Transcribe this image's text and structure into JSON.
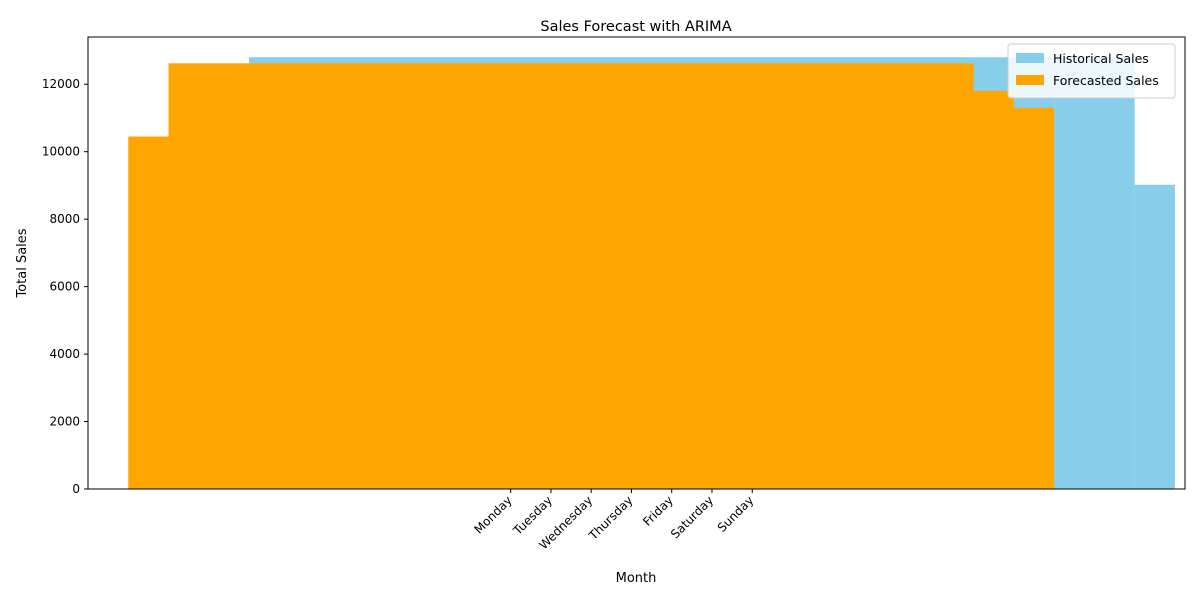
{
  "chart_data": {
    "type": "bar",
    "title": "Sales Forecast with ARIMA",
    "xlabel": "Month",
    "ylabel": "Total Sales",
    "ylim": [
      0,
      13400
    ],
    "xlim": [
      -10.5,
      16.75
    ],
    "y_ticks": [
      0,
      2000,
      4000,
      6000,
      8000,
      10000,
      12000
    ],
    "x_ticks": [
      {
        "pos": 0,
        "label": "Monday"
      },
      {
        "pos": 1,
        "label": "Tuesday"
      },
      {
        "pos": 2,
        "label": "Wednesday"
      },
      {
        "pos": 3,
        "label": "Thursday"
      },
      {
        "pos": 4,
        "label": "Friday"
      },
      {
        "pos": 5,
        "label": "Saturday"
      },
      {
        "pos": 6,
        "label": "Sunday"
      }
    ],
    "x_tick_rotation": 45,
    "legend_position": "top-right",
    "grid": false,
    "series": [
      {
        "name": "Historical Sales",
        "color": "#87ceeb",
        "bars": [
          {
            "x": -6.5,
            "x_end": 13.5,
            "value": 12800
          },
          {
            "x": 13.5,
            "x_end": 15.5,
            "value": 12800
          },
          {
            "x": 15.5,
            "x_end": 16.5,
            "value": 9020
          }
        ]
      },
      {
        "name": "Forecasted Sales",
        "color": "#ffa500",
        "bars": [
          {
            "x": -9.5,
            "x_end": -8.5,
            "value": 10450
          },
          {
            "x": -8.5,
            "x_end": 11.5,
            "value": 12620
          },
          {
            "x": 11.5,
            "x_end": 12.5,
            "value": 11800
          },
          {
            "x": 12.5,
            "x_end": 13.5,
            "value": 11300
          }
        ]
      }
    ]
  }
}
